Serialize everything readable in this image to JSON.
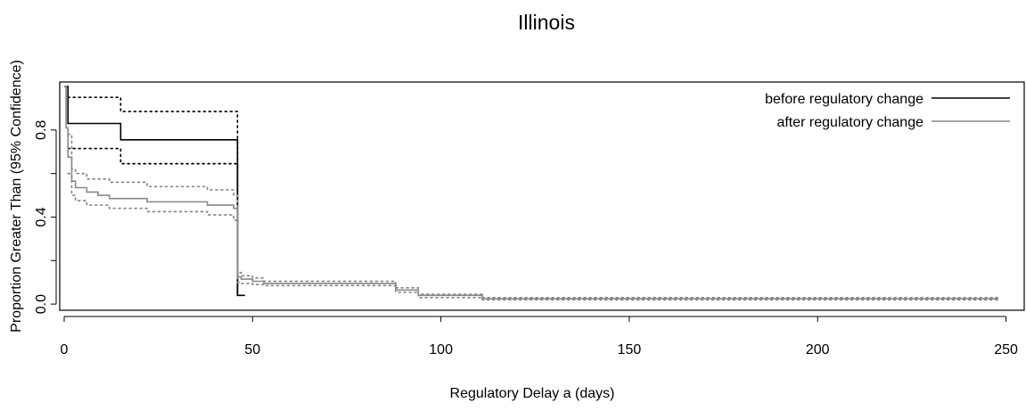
{
  "chart_data": {
    "type": "line",
    "title": "Illinois",
    "xlabel": "Regulatory Delay a (days)",
    "ylabel": "Proportion Greater Than (95% Confidence)",
    "xlim": [
      0,
      252
    ],
    "ylim": [
      -0.02,
      1.0
    ],
    "x_ticks": [
      0,
      50,
      100,
      150,
      200,
      250
    ],
    "x_tick_labels": [
      "0",
      "50",
      "100",
      "150",
      "200",
      "250"
    ],
    "y_ticks": [
      0.0,
      0.2,
      0.4,
      0.6,
      0.8
    ],
    "y_tick_labels": [
      "0.0",
      "",
      "0.4",
      "",
      "0.8"
    ],
    "grid": false,
    "legend": "top-right",
    "legend_entries": [
      {
        "label": "before regulatory change",
        "color": "#000000"
      },
      {
        "label": "after regulatory change",
        "color": "#888888"
      }
    ],
    "series": [
      {
        "name": "before regulatory change",
        "role": "estimate",
        "color": "#000000",
        "dash": "solid",
        "points": [
          [
            0,
            1.0
          ],
          [
            1,
            1.0
          ],
          [
            1,
            0.83
          ],
          [
            15,
            0.83
          ],
          [
            15,
            0.755
          ],
          [
            46,
            0.755
          ],
          [
            46,
            0.04
          ],
          [
            48,
            0.04
          ]
        ]
      },
      {
        "name": "before regulatory change",
        "role": "upper",
        "color": "#000000",
        "dash": "dotted",
        "points": [
          [
            1,
            0.95
          ],
          [
            15,
            0.95
          ],
          [
            15,
            0.885
          ],
          [
            46,
            0.885
          ],
          [
            46,
            0.04
          ]
        ]
      },
      {
        "name": "before regulatory change",
        "role": "lower",
        "color": "#000000",
        "dash": "dotted",
        "points": [
          [
            1,
            0.715
          ],
          [
            15,
            0.715
          ],
          [
            15,
            0.645
          ],
          [
            46,
            0.645
          ],
          [
            46,
            0.04
          ]
        ]
      },
      {
        "name": "after regulatory change",
        "role": "estimate",
        "color": "#888888",
        "dash": "solid",
        "points": [
          [
            0,
            1.0
          ],
          [
            0.5,
            1.0
          ],
          [
            0.5,
            0.81
          ],
          [
            1,
            0.81
          ],
          [
            1,
            0.675
          ],
          [
            2,
            0.675
          ],
          [
            2,
            0.565
          ],
          [
            3,
            0.565
          ],
          [
            3,
            0.535
          ],
          [
            6,
            0.535
          ],
          [
            6,
            0.515
          ],
          [
            9,
            0.515
          ],
          [
            9,
            0.5
          ],
          [
            12,
            0.5
          ],
          [
            12,
            0.485
          ],
          [
            22,
            0.485
          ],
          [
            22,
            0.47
          ],
          [
            38,
            0.47
          ],
          [
            38,
            0.455
          ],
          [
            45,
            0.455
          ],
          [
            45,
            0.44
          ],
          [
            46,
            0.44
          ],
          [
            46,
            0.125
          ],
          [
            47,
            0.125
          ],
          [
            47,
            0.115
          ],
          [
            50,
            0.115
          ],
          [
            50,
            0.105
          ],
          [
            53,
            0.105
          ],
          [
            53,
            0.095
          ],
          [
            88,
            0.095
          ],
          [
            88,
            0.065
          ],
          [
            94,
            0.065
          ],
          [
            94,
            0.04
          ],
          [
            111,
            0.04
          ],
          [
            111,
            0.025
          ],
          [
            248,
            0.025
          ]
        ]
      },
      {
        "name": "after regulatory change",
        "role": "upper",
        "color": "#888888",
        "dash": "dotted",
        "points": [
          [
            1,
            0.78
          ],
          [
            2,
            0.78
          ],
          [
            2,
            0.62
          ],
          [
            3,
            0.62
          ],
          [
            3,
            0.6
          ],
          [
            6,
            0.6
          ],
          [
            6,
            0.575
          ],
          [
            12,
            0.575
          ],
          [
            12,
            0.56
          ],
          [
            22,
            0.56
          ],
          [
            22,
            0.54
          ],
          [
            38,
            0.54
          ],
          [
            38,
            0.525
          ],
          [
            45,
            0.525
          ],
          [
            45,
            0.5
          ],
          [
            46,
            0.5
          ],
          [
            46,
            0.145
          ],
          [
            47,
            0.145
          ],
          [
            47,
            0.13
          ],
          [
            50,
            0.13
          ],
          [
            50,
            0.12
          ],
          [
            53,
            0.12
          ],
          [
            53,
            0.105
          ],
          [
            88,
            0.105
          ],
          [
            88,
            0.075
          ],
          [
            94,
            0.075
          ],
          [
            94,
            0.045
          ],
          [
            111,
            0.045
          ],
          [
            111,
            0.03
          ],
          [
            248,
            0.03
          ]
        ]
      },
      {
        "name": "after regulatory change",
        "role": "lower",
        "color": "#888888",
        "dash": "dotted",
        "points": [
          [
            1,
            0.6
          ],
          [
            2,
            0.6
          ],
          [
            2,
            0.5
          ],
          [
            3,
            0.5
          ],
          [
            3,
            0.475
          ],
          [
            6,
            0.475
          ],
          [
            6,
            0.455
          ],
          [
            12,
            0.455
          ],
          [
            12,
            0.44
          ],
          [
            22,
            0.44
          ],
          [
            22,
            0.425
          ],
          [
            38,
            0.425
          ],
          [
            38,
            0.41
          ],
          [
            45,
            0.41
          ],
          [
            45,
            0.385
          ],
          [
            46,
            0.385
          ],
          [
            46,
            0.1
          ],
          [
            47,
            0.1
          ],
          [
            47,
            0.095
          ],
          [
            50,
            0.095
          ],
          [
            50,
            0.09
          ],
          [
            53,
            0.09
          ],
          [
            53,
            0.085
          ],
          [
            88,
            0.085
          ],
          [
            88,
            0.055
          ],
          [
            94,
            0.055
          ],
          [
            94,
            0.03
          ],
          [
            111,
            0.03
          ],
          [
            111,
            0.02
          ],
          [
            248,
            0.02
          ]
        ]
      }
    ]
  }
}
